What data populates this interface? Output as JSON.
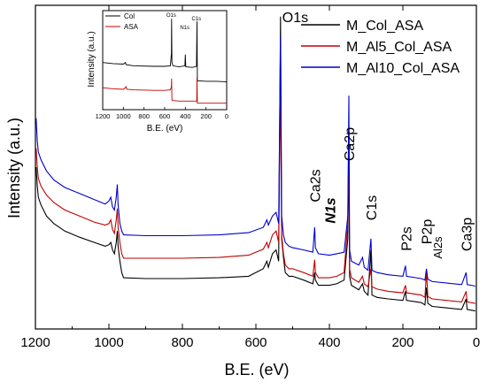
{
  "chart_data": [
    {
      "type": "line",
      "xlabel": "B.E. (eV)",
      "ylabel": "Intensity (a.u.)",
      "xlim": [
        1200,
        0
      ],
      "x_ticks": [
        "1200",
        "1000",
        "800",
        "600",
        "400",
        "200",
        "0"
      ],
      "x_tick_values": [
        1200,
        1000,
        800,
        600,
        400,
        200,
        0
      ],
      "y_ticks_shown": false,
      "legend_position": "top-right",
      "series": [
        {
          "name": "M_Col_ASA",
          "color": "#000000",
          "points": [
            [
              1198,
              1.95
            ],
            [
              1195,
              1.7
            ],
            [
              1192,
              1.55
            ],
            [
              1185,
              1.45
            ],
            [
              1170,
              1.3
            ],
            [
              1150,
              1.2
            ],
            [
              1120,
              1.1
            ],
            [
              1080,
              1.02
            ],
            [
              1040,
              0.95
            ],
            [
              1010,
              0.9
            ],
            [
              1000,
              0.92
            ],
            [
              995,
              0.95
            ],
            [
              990,
              0.85
            ],
            [
              985,
              0.8
            ],
            [
              980,
              0.95
            ],
            [
              977,
              1.1
            ],
            [
              975,
              0.9
            ],
            [
              970,
              0.7
            ],
            [
              965,
              0.55
            ],
            [
              960,
              0.48
            ],
            [
              900,
              0.47
            ],
            [
              800,
              0.47
            ],
            [
              700,
              0.48
            ],
            [
              620,
              0.5
            ],
            [
              580,
              0.6
            ],
            [
              570,
              0.7
            ],
            [
              566,
              0.62
            ],
            [
              555,
              0.8
            ],
            [
              545,
              0.85
            ],
            [
              538,
              0.7
            ],
            [
              533,
              3.95
            ],
            [
              530,
              1.0
            ],
            [
              525,
              0.75
            ],
            [
              520,
              0.55
            ],
            [
              510,
              0.5
            ],
            [
              500,
              0.5
            ],
            [
              470,
              0.45
            ],
            [
              445,
              0.4
            ],
            [
              440,
              0.55
            ],
            [
              438,
              0.45
            ],
            [
              430,
              0.38
            ],
            [
              400,
              0.38
            ],
            [
              380,
              0.4
            ],
            [
              360,
              0.45
            ],
            [
              350,
              1.0
            ],
            [
              347,
              2.3
            ],
            [
              345,
              0.5
            ],
            [
              340,
              0.38
            ],
            [
              320,
              0.32
            ],
            [
              310,
              0.4
            ],
            [
              305,
              0.3
            ],
            [
              295,
              0.25
            ],
            [
              287,
              0.85
            ],
            [
              284,
              0.25
            ],
            [
              270,
              0.22
            ],
            [
              240,
              0.2
            ],
            [
              200,
              0.18
            ],
            [
              193,
              0.3
            ],
            [
              190,
              0.18
            ],
            [
              150,
              0.15
            ],
            [
              140,
              0.12
            ],
            [
              136,
              0.35
            ],
            [
              132,
              0.14
            ],
            [
              120,
              0.1
            ],
            [
              80,
              0.08
            ],
            [
              40,
              0.06
            ],
            [
              28,
              0.2
            ],
            [
              25,
              0.06
            ],
            [
              3,
              0.04
            ]
          ]
        },
        {
          "name": "M_Al5_Col_ASA",
          "color": "#c00000",
          "points": [
            [
              1198,
              2.2
            ],
            [
              1195,
              1.95
            ],
            [
              1192,
              1.8
            ],
            [
              1185,
              1.7
            ],
            [
              1170,
              1.58
            ],
            [
              1150,
              1.48
            ],
            [
              1120,
              1.38
            ],
            [
              1080,
              1.3
            ],
            [
              1040,
              1.22
            ],
            [
              1010,
              1.18
            ],
            [
              1000,
              1.2
            ],
            [
              995,
              1.25
            ],
            [
              990,
              1.12
            ],
            [
              985,
              1.07
            ],
            [
              980,
              1.25
            ],
            [
              977,
              1.4
            ],
            [
              975,
              1.15
            ],
            [
              970,
              0.95
            ],
            [
              965,
              0.8
            ],
            [
              960,
              0.74
            ],
            [
              900,
              0.74
            ],
            [
              800,
              0.74
            ],
            [
              700,
              0.75
            ],
            [
              620,
              0.78
            ],
            [
              580,
              0.86
            ],
            [
              570,
              0.95
            ],
            [
              566,
              0.88
            ],
            [
              555,
              1.05
            ],
            [
              545,
              1.1
            ],
            [
              538,
              0.95
            ],
            [
              533,
              3.1
            ],
            [
              530,
              1.05
            ],
            [
              525,
              0.8
            ],
            [
              520,
              0.65
            ],
            [
              510,
              0.6
            ],
            [
              500,
              0.6
            ],
            [
              470,
              0.55
            ],
            [
              445,
              0.5
            ],
            [
              440,
              0.72
            ],
            [
              438,
              0.55
            ],
            [
              430,
              0.48
            ],
            [
              400,
              0.48
            ],
            [
              380,
              0.5
            ],
            [
              360,
              0.55
            ],
            [
              350,
              1.2
            ],
            [
              347,
              2.5
            ],
            [
              345,
              0.6
            ],
            [
              340,
              0.48
            ],
            [
              320,
              0.42
            ],
            [
              310,
              0.5
            ],
            [
              305,
              0.4
            ],
            [
              295,
              0.36
            ],
            [
              287,
              0.6
            ],
            [
              284,
              0.36
            ],
            [
              270,
              0.33
            ],
            [
              240,
              0.3
            ],
            [
              200,
              0.28
            ],
            [
              193,
              0.38
            ],
            [
              190,
              0.28
            ],
            [
              150,
              0.25
            ],
            [
              140,
              0.22
            ],
            [
              136,
              0.56
            ],
            [
              132,
              0.23
            ],
            [
              120,
              0.2
            ],
            [
              80,
              0.18
            ],
            [
              40,
              0.16
            ],
            [
              28,
              0.3
            ],
            [
              25,
              0.16
            ],
            [
              3,
              0.14
            ]
          ]
        },
        {
          "name": "M_Al10_Col_ASA",
          "color": "#0000cc",
          "points": [
            [
              1198,
              2.6
            ],
            [
              1195,
              2.3
            ],
            [
              1192,
              2.15
            ],
            [
              1185,
              2.05
            ],
            [
              1170,
              1.9
            ],
            [
              1150,
              1.78
            ],
            [
              1120,
              1.68
            ],
            [
              1080,
              1.6
            ],
            [
              1040,
              1.52
            ],
            [
              1010,
              1.46
            ],
            [
              1000,
              1.5
            ],
            [
              995,
              1.55
            ],
            [
              990,
              1.42
            ],
            [
              985,
              1.38
            ],
            [
              980,
              1.55
            ],
            [
              977,
              1.72
            ],
            [
              975,
              1.45
            ],
            [
              970,
              1.2
            ],
            [
              965,
              1.1
            ],
            [
              960,
              1.05
            ],
            [
              900,
              1.04
            ],
            [
              800,
              1.04
            ],
            [
              700,
              1.05
            ],
            [
              620,
              1.08
            ],
            [
              580,
              1.15
            ],
            [
              570,
              1.25
            ],
            [
              566,
              1.18
            ],
            [
              555,
              1.3
            ],
            [
              545,
              1.35
            ],
            [
              538,
              1.2
            ],
            [
              533,
              3.7
            ],
            [
              530,
              1.3
            ],
            [
              525,
              1.05
            ],
            [
              520,
              0.95
            ],
            [
              510,
              0.9
            ],
            [
              500,
              0.88
            ],
            [
              470,
              0.85
            ],
            [
              445,
              0.82
            ],
            [
              440,
              1.15
            ],
            [
              438,
              0.88
            ],
            [
              430,
              0.8
            ],
            [
              400,
              0.78
            ],
            [
              380,
              0.8
            ],
            [
              360,
              0.82
            ],
            [
              350,
              1.3
            ],
            [
              347,
              2.9
            ],
            [
              345,
              0.85
            ],
            [
              340,
              0.7
            ],
            [
              320,
              0.65
            ],
            [
              310,
              0.75
            ],
            [
              305,
              0.62
            ],
            [
              295,
              0.58
            ],
            [
              287,
              1.0
            ],
            [
              284,
              0.58
            ],
            [
              270,
              0.55
            ],
            [
              240,
              0.52
            ],
            [
              200,
              0.5
            ],
            [
              193,
              0.64
            ],
            [
              190,
              0.5
            ],
            [
              150,
              0.47
            ],
            [
              140,
              0.45
            ],
            [
              136,
              0.6
            ],
            [
              132,
              0.46
            ],
            [
              120,
              0.43
            ],
            [
              80,
              0.41
            ],
            [
              40,
              0.39
            ],
            [
              28,
              0.55
            ],
            [
              25,
              0.39
            ],
            [
              3,
              0.37
            ]
          ]
        }
      ],
      "annotations": [
        {
          "text": "O1s",
          "x": 533,
          "italic_bold": false,
          "rotate": false
        },
        {
          "text": "Ca2s",
          "x": 440,
          "italic_bold": false,
          "rotate": true
        },
        {
          "text": "N1s",
          "x": 399,
          "italic_bold": true,
          "rotate": true
        },
        {
          "text": "Ca2p",
          "x": 347,
          "italic_bold": false,
          "rotate": true
        },
        {
          "text": "C1s",
          "x": 287,
          "italic_bold": false,
          "rotate": true
        },
        {
          "text": "P2s",
          "x": 192,
          "italic_bold": false,
          "rotate": true
        },
        {
          "text": "P2p",
          "x": 136,
          "italic_bold": false,
          "rotate": true
        },
        {
          "text": "Al2s",
          "x": 118,
          "italic_bold": false,
          "rotate": true
        },
        {
          "text": "Ca3p",
          "x": 28,
          "italic_bold": false,
          "rotate": true
        }
      ]
    },
    {
      "type": "line",
      "role": "inset",
      "xlabel": "B.E. (eV)",
      "ylabel": "Intensity (a.u.)",
      "xlim": [
        1200,
        0
      ],
      "x_ticks": [
        "1200",
        "1000",
        "800",
        "600",
        "400",
        "200",
        "0"
      ],
      "x_tick_values": [
        1200,
        1000,
        800,
        600,
        400,
        200,
        0
      ],
      "legend_position": "top-left",
      "series": [
        {
          "name": "Col",
          "color": "#000000",
          "points": [
            [
              1200,
              0.78
            ],
            [
              1100,
              0.76
            ],
            [
              1000,
              0.75
            ],
            [
              980,
              0.78
            ],
            [
              975,
              0.74
            ],
            [
              900,
              0.72
            ],
            [
              700,
              0.71
            ],
            [
              600,
              0.71
            ],
            [
              545,
              0.72
            ],
            [
              535,
              0.95
            ],
            [
              533,
              1.6
            ],
            [
              530,
              0.78
            ],
            [
              520,
              0.72
            ],
            [
              460,
              0.7
            ],
            [
              405,
              0.72
            ],
            [
              400,
              0.93
            ],
            [
              396,
              0.7
            ],
            [
              330,
              0.69
            ],
            [
              292,
              0.71
            ],
            [
              287,
              1.55
            ],
            [
              284,
              0.44
            ],
            [
              200,
              0.43
            ],
            [
              100,
              0.43
            ],
            [
              0,
              0.42
            ]
          ]
        },
        {
          "name": "ASA",
          "color": "#c00000",
          "points": [
            [
              1200,
              0.31
            ],
            [
              1100,
              0.29
            ],
            [
              1000,
              0.28
            ],
            [
              985,
              0.3
            ],
            [
              975,
              0.33
            ],
            [
              965,
              0.28
            ],
            [
              900,
              0.27
            ],
            [
              700,
              0.26
            ],
            [
              600,
              0.26
            ],
            [
              545,
              0.27
            ],
            [
              535,
              0.33
            ],
            [
              533,
              0.48
            ],
            [
              530,
              0.08
            ],
            [
              520,
              0.07
            ],
            [
              460,
              0.06
            ],
            [
              300,
              0.06
            ],
            [
              290,
              0.06
            ],
            [
              287,
              0.5
            ],
            [
              284,
              0.02
            ],
            [
              200,
              0.02
            ],
            [
              100,
              0.02
            ],
            [
              0,
              0.02
            ]
          ]
        }
      ],
      "annotations": [
        {
          "text": "O1s",
          "x": 533
        },
        {
          "text": "N1s",
          "x": 400
        },
        {
          "text": "C1s",
          "x": 287
        }
      ]
    }
  ]
}
